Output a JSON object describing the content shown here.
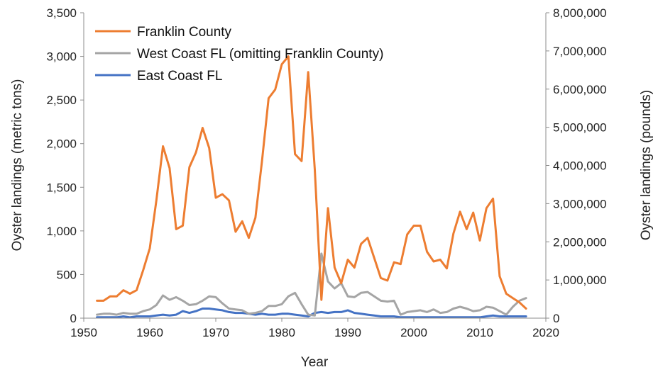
{
  "chart_data": {
    "type": "line",
    "xlabel": "Year",
    "ylabel_left": "Oyster landings (metric tons)",
    "ylabel_right": "Oyster landings (pounds)",
    "xlim": [
      1950,
      2020
    ],
    "ylim_left": [
      0,
      3500
    ],
    "ylim_right": [
      0,
      8000000
    ],
    "x_ticks": [
      1950,
      1960,
      1970,
      1980,
      1990,
      2000,
      2010,
      2020
    ],
    "x_tick_labels": [
      "1950",
      "1960",
      "1970",
      "1980",
      "1990",
      "2000",
      "2010",
      "2020"
    ],
    "y_left_ticks": [
      0,
      500,
      1000,
      1500,
      2000,
      2500,
      3000,
      3500
    ],
    "y_left_tick_labels": [
      "0",
      "500",
      "1,000",
      "1,500",
      "2,000",
      "2,500",
      "3,000",
      "3,500"
    ],
    "y_right_ticks": [
      0,
      1000000,
      2000000,
      3000000,
      4000000,
      5000000,
      6000000,
      7000000,
      8000000
    ],
    "y_right_tick_labels": [
      "0",
      "1,000,000",
      "2,000,000",
      "3,000,000",
      "4,000,000",
      "5,000,000",
      "6,000,000",
      "7,000,000",
      "8,000,000"
    ],
    "grid": false,
    "legend_position": "top-left",
    "series": [
      {
        "name": "Franklin County",
        "color": "#ED7D31",
        "axis": "left",
        "points": [
          [
            1952,
            200
          ],
          [
            1953,
            200
          ],
          [
            1954,
            250
          ],
          [
            1955,
            250
          ],
          [
            1956,
            320
          ],
          [
            1957,
            280
          ],
          [
            1958,
            320
          ],
          [
            1959,
            550
          ],
          [
            1960,
            800
          ],
          [
            1961,
            1350
          ],
          [
            1962,
            1970
          ],
          [
            1963,
            1720
          ],
          [
            1964,
            1020
          ],
          [
            1965,
            1060
          ],
          [
            1966,
            1730
          ],
          [
            1967,
            1900
          ],
          [
            1968,
            2180
          ],
          [
            1969,
            1950
          ],
          [
            1970,
            1380
          ],
          [
            1971,
            1420
          ],
          [
            1972,
            1350
          ],
          [
            1973,
            990
          ],
          [
            1974,
            1110
          ],
          [
            1975,
            920
          ],
          [
            1976,
            1150
          ],
          [
            1977,
            1800
          ],
          [
            1978,
            2520
          ],
          [
            1979,
            2620
          ],
          [
            1980,
            2910
          ],
          [
            1981,
            3000
          ],
          [
            1982,
            1880
          ],
          [
            1983,
            1800
          ],
          [
            1984,
            2820
          ],
          [
            1985,
            1700
          ],
          [
            1986,
            210
          ],
          [
            1987,
            1260
          ],
          [
            1988,
            580
          ],
          [
            1989,
            400
          ],
          [
            1990,
            670
          ],
          [
            1991,
            580
          ],
          [
            1992,
            850
          ],
          [
            1993,
            920
          ],
          [
            1994,
            690
          ],
          [
            1995,
            460
          ],
          [
            1996,
            430
          ],
          [
            1997,
            640
          ],
          [
            1998,
            620
          ],
          [
            1999,
            960
          ],
          [
            2000,
            1060
          ],
          [
            2001,
            1060
          ],
          [
            2002,
            760
          ],
          [
            2003,
            650
          ],
          [
            2004,
            670
          ],
          [
            2005,
            570
          ],
          [
            2006,
            970
          ],
          [
            2007,
            1220
          ],
          [
            2008,
            1020
          ],
          [
            2009,
            1210
          ],
          [
            2010,
            890
          ],
          [
            2011,
            1260
          ],
          [
            2012,
            1370
          ],
          [
            2013,
            480
          ],
          [
            2014,
            280
          ],
          [
            2015,
            230
          ],
          [
            2016,
            180
          ],
          [
            2017,
            110
          ]
        ]
      },
      {
        "name": "West Coast FL (omitting Franklin County)",
        "color": "#A5A5A5",
        "axis": "left",
        "points": [
          [
            1952,
            40
          ],
          [
            1953,
            50
          ],
          [
            1954,
            50
          ],
          [
            1955,
            40
          ],
          [
            1956,
            60
          ],
          [
            1957,
            50
          ],
          [
            1958,
            50
          ],
          [
            1959,
            80
          ],
          [
            1960,
            100
          ],
          [
            1961,
            150
          ],
          [
            1962,
            260
          ],
          [
            1963,
            210
          ],
          [
            1964,
            240
          ],
          [
            1965,
            200
          ],
          [
            1966,
            150
          ],
          [
            1967,
            160
          ],
          [
            1968,
            200
          ],
          [
            1969,
            250
          ],
          [
            1970,
            240
          ],
          [
            1971,
            170
          ],
          [
            1972,
            110
          ],
          [
            1973,
            100
          ],
          [
            1974,
            90
          ],
          [
            1975,
            50
          ],
          [
            1976,
            60
          ],
          [
            1977,
            80
          ],
          [
            1978,
            140
          ],
          [
            1979,
            140
          ],
          [
            1980,
            160
          ],
          [
            1981,
            250
          ],
          [
            1982,
            290
          ],
          [
            1983,
            160
          ],
          [
            1984,
            40
          ],
          [
            1985,
            30
          ],
          [
            1986,
            740
          ],
          [
            1987,
            420
          ],
          [
            1988,
            340
          ],
          [
            1989,
            400
          ],
          [
            1990,
            250
          ],
          [
            1991,
            240
          ],
          [
            1992,
            290
          ],
          [
            1993,
            300
          ],
          [
            1994,
            250
          ],
          [
            1995,
            200
          ],
          [
            1996,
            190
          ],
          [
            1997,
            200
          ],
          [
            1998,
            40
          ],
          [
            1999,
            70
          ],
          [
            2000,
            80
          ],
          [
            2001,
            90
          ],
          [
            2002,
            70
          ],
          [
            2003,
            100
          ],
          [
            2004,
            60
          ],
          [
            2005,
            70
          ],
          [
            2006,
            110
          ],
          [
            2007,
            130
          ],
          [
            2008,
            110
          ],
          [
            2009,
            80
          ],
          [
            2010,
            90
          ],
          [
            2011,
            130
          ],
          [
            2012,
            120
          ],
          [
            2013,
            80
          ],
          [
            2014,
            40
          ],
          [
            2015,
            130
          ],
          [
            2016,
            200
          ],
          [
            2017,
            230
          ]
        ]
      },
      {
        "name": "East Coast FL",
        "color": "#4472C4",
        "axis": "left",
        "points": [
          [
            1952,
            10
          ],
          [
            1953,
            10
          ],
          [
            1954,
            10
          ],
          [
            1955,
            10
          ],
          [
            1956,
            20
          ],
          [
            1957,
            10
          ],
          [
            1958,
            20
          ],
          [
            1959,
            20
          ],
          [
            1960,
            20
          ],
          [
            1961,
            30
          ],
          [
            1962,
            40
          ],
          [
            1963,
            30
          ],
          [
            1964,
            40
          ],
          [
            1965,
            80
          ],
          [
            1966,
            60
          ],
          [
            1967,
            80
          ],
          [
            1968,
            110
          ],
          [
            1969,
            110
          ],
          [
            1970,
            100
          ],
          [
            1971,
            90
          ],
          [
            1972,
            70
          ],
          [
            1973,
            60
          ],
          [
            1974,
            60
          ],
          [
            1975,
            50
          ],
          [
            1976,
            40
          ],
          [
            1977,
            50
          ],
          [
            1978,
            40
          ],
          [
            1979,
            40
          ],
          [
            1980,
            50
          ],
          [
            1981,
            50
          ],
          [
            1982,
            40
          ],
          [
            1983,
            30
          ],
          [
            1984,
            20
          ],
          [
            1985,
            60
          ],
          [
            1986,
            70
          ],
          [
            1987,
            60
          ],
          [
            1988,
            70
          ],
          [
            1989,
            70
          ],
          [
            1990,
            90
          ],
          [
            1991,
            60
          ],
          [
            1992,
            50
          ],
          [
            1993,
            40
          ],
          [
            1994,
            30
          ],
          [
            1995,
            20
          ],
          [
            1996,
            20
          ],
          [
            1997,
            20
          ],
          [
            1998,
            10
          ],
          [
            1999,
            10
          ],
          [
            2000,
            10
          ],
          [
            2001,
            10
          ],
          [
            2002,
            10
          ],
          [
            2003,
            10
          ],
          [
            2004,
            10
          ],
          [
            2005,
            10
          ],
          [
            2006,
            10
          ],
          [
            2007,
            10
          ],
          [
            2008,
            10
          ],
          [
            2009,
            10
          ],
          [
            2010,
            10
          ],
          [
            2011,
            20
          ],
          [
            2012,
            30
          ],
          [
            2013,
            20
          ],
          [
            2014,
            20
          ],
          [
            2015,
            20
          ],
          [
            2016,
            20
          ],
          [
            2017,
            20
          ]
        ]
      }
    ]
  }
}
